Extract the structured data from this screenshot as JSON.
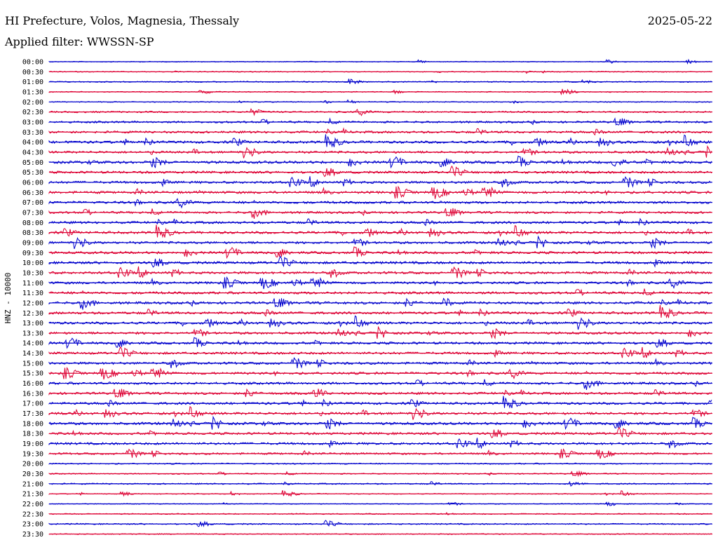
{
  "header": {
    "title": "HI Prefecture, Volos, Magnesia, Thessaly",
    "date": "2025-05-22",
    "filter": "Applied filter: WWSSN-SP"
  },
  "chart_data": {
    "type": "line",
    "title": "HI Prefecture, Volos, Magnesia, Thessaly",
    "ylabel": "HNZ - 10000",
    "xlabel": "",
    "grid": false,
    "colors": [
      "#0000cc",
      "#dd0033"
    ],
    "rows": [
      {
        "time": "00:00",
        "color": "#0000cc",
        "level": 0.15
      },
      {
        "time": "00:30",
        "color": "#dd0033",
        "level": 0.2
      },
      {
        "time": "01:00",
        "color": "#0000cc",
        "level": 0.25
      },
      {
        "time": "01:30",
        "color": "#dd0033",
        "level": 0.2
      },
      {
        "time": "02:00",
        "color": "#0000cc",
        "level": 0.2
      },
      {
        "time": "02:30",
        "color": "#dd0033",
        "level": 0.45
      },
      {
        "time": "03:00",
        "color": "#0000cc",
        "level": 0.6
      },
      {
        "time": "03:30",
        "color": "#dd0033",
        "level": 0.75
      },
      {
        "time": "04:00",
        "color": "#0000cc",
        "level": 0.85
      },
      {
        "time": "04:30",
        "color": "#dd0033",
        "level": 0.75
      },
      {
        "time": "05:00",
        "color": "#0000cc",
        "level": 0.9
      },
      {
        "time": "05:30",
        "color": "#dd0033",
        "level": 0.8
      },
      {
        "time": "06:00",
        "color": "#0000cc",
        "level": 0.8
      },
      {
        "time": "06:30",
        "color": "#dd0033",
        "level": 0.85
      },
      {
        "time": "07:00",
        "color": "#0000cc",
        "level": 0.8
      },
      {
        "time": "07:30",
        "color": "#dd0033",
        "level": 0.75
      },
      {
        "time": "08:00",
        "color": "#0000cc",
        "level": 0.8
      },
      {
        "time": "08:30",
        "color": "#dd0033",
        "level": 0.85
      },
      {
        "time": "09:00",
        "color": "#0000cc",
        "level": 0.8
      },
      {
        "time": "09:30",
        "color": "#dd0033",
        "level": 0.85
      },
      {
        "time": "10:00",
        "color": "#0000cc",
        "level": 0.85
      },
      {
        "time": "10:30",
        "color": "#dd0033",
        "level": 0.85
      },
      {
        "time": "11:00",
        "color": "#0000cc",
        "level": 0.8
      },
      {
        "time": "11:30",
        "color": "#dd0033",
        "level": 0.85
      },
      {
        "time": "12:00",
        "color": "#0000cc",
        "level": 0.85
      },
      {
        "time": "12:30",
        "color": "#dd0033",
        "level": 0.85
      },
      {
        "time": "13:00",
        "color": "#0000cc",
        "level": 0.85
      },
      {
        "time": "13:30",
        "color": "#dd0033",
        "level": 0.8
      },
      {
        "time": "14:00",
        "color": "#0000cc",
        "level": 0.8
      },
      {
        "time": "14:30",
        "color": "#dd0033",
        "level": 0.8
      },
      {
        "time": "15:00",
        "color": "#0000cc",
        "level": 0.8
      },
      {
        "time": "15:30",
        "color": "#dd0033",
        "level": 0.8
      },
      {
        "time": "16:00",
        "color": "#0000cc",
        "level": 0.8
      },
      {
        "time": "16:30",
        "color": "#dd0033",
        "level": 0.8
      },
      {
        "time": "17:00",
        "color": "#0000cc",
        "level": 0.8
      },
      {
        "time": "17:30",
        "color": "#dd0033",
        "level": 0.8
      },
      {
        "time": "18:00",
        "color": "#0000cc",
        "level": 0.9
      },
      {
        "time": "18:30",
        "color": "#dd0033",
        "level": 0.8
      },
      {
        "time": "19:00",
        "color": "#0000cc",
        "level": 0.75
      },
      {
        "time": "19:30",
        "color": "#dd0033",
        "level": 0.6
      },
      {
        "time": "20:00",
        "color": "#0000cc",
        "level": 0.35
      },
      {
        "time": "20:30",
        "color": "#dd0033",
        "level": 0.25
      },
      {
        "time": "21:00",
        "color": "#0000cc",
        "level": 0.35
      },
      {
        "time": "21:30",
        "color": "#dd0033",
        "level": 0.2
      },
      {
        "time": "22:00",
        "color": "#0000cc",
        "level": 0.15
      },
      {
        "time": "22:30",
        "color": "#dd0033",
        "level": 0.25
      },
      {
        "time": "23:00",
        "color": "#0000cc",
        "level": 0.35
      },
      {
        "time": "23:30",
        "color": "#dd0033",
        "level": 0.2
      }
    ]
  }
}
